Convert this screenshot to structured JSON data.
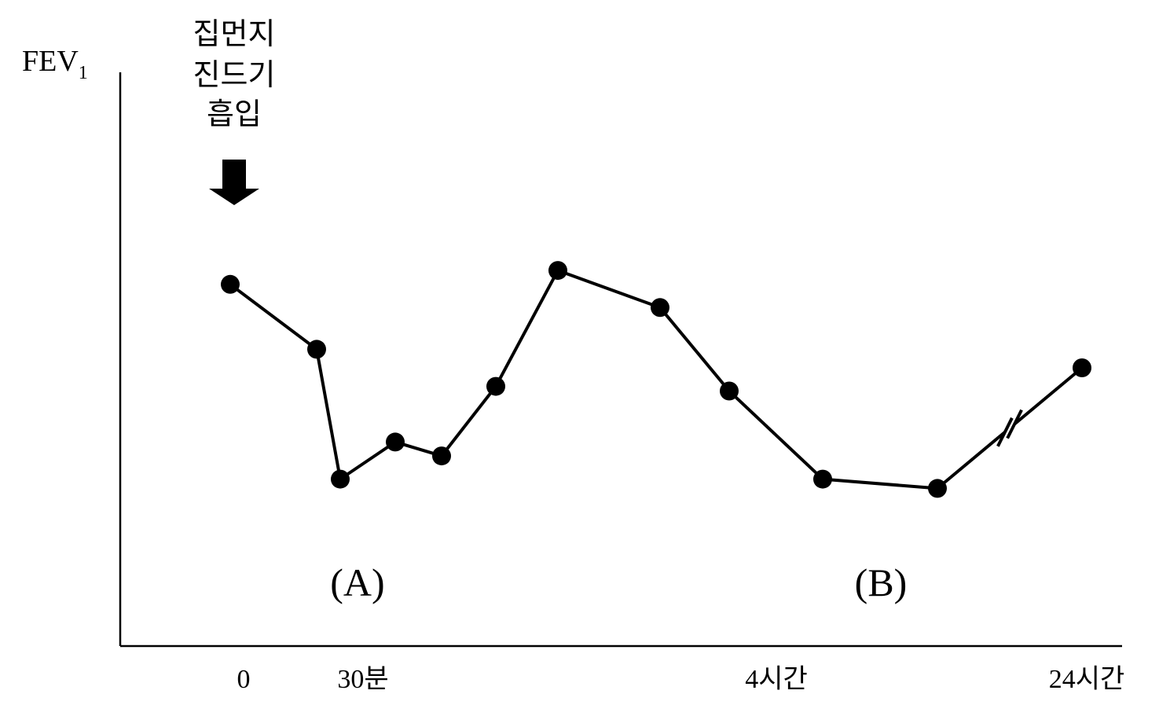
{
  "chart_data": {
    "type": "line",
    "ylabel_main": "FEV",
    "ylabel_sub": "1",
    "xticks": [
      {
        "label": "0",
        "x": 0
      },
      {
        "label": "30분",
        "x": 0.5
      },
      {
        "label": "4시간",
        "x": 4
      },
      {
        "label": "24시간",
        "x": 24
      }
    ],
    "annotation": {
      "lines": [
        "집먼지",
        "진드기",
        "흡입"
      ]
    },
    "phases": [
      {
        "label": "(A)"
      },
      {
        "label": "(B)"
      }
    ],
    "axis_break": true,
    "series": [
      {
        "points": [
          {
            "x": 0,
            "y": 0.78
          },
          {
            "x": 0.35,
            "y": 0.64
          },
          {
            "x": 0.5,
            "y": 0.36
          },
          {
            "x": 0.75,
            "y": 0.44
          },
          {
            "x": 1.0,
            "y": 0.41
          },
          {
            "x": 1.5,
            "y": 0.56
          },
          {
            "x": 2.0,
            "y": 0.81
          },
          {
            "x": 3.0,
            "y": 0.73
          },
          {
            "x": 3.5,
            "y": 0.55
          },
          {
            "x": 4.5,
            "y": 0.36
          },
          {
            "x": 6.0,
            "y": 0.34
          },
          {
            "x": 24,
            "y": 0.6
          }
        ]
      }
    ],
    "ylim": [
      0,
      1
    ],
    "grid": false,
    "legend": "none"
  },
  "colors": {
    "line": "#000000",
    "marker": "#000000",
    "background": "#ffffff"
  }
}
